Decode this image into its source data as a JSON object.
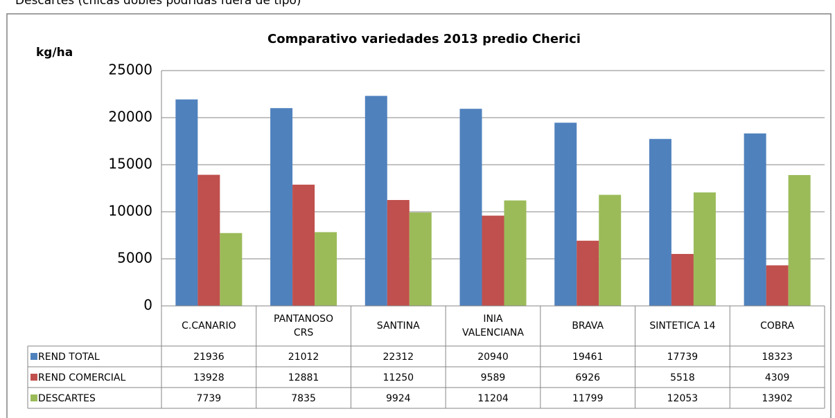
{
  "page_caption": "Descartes (chicas dobles podridas fuera de tipo)",
  "chart_data": {
    "type": "bar",
    "title": "Comparativo variedades 2013 predio Cherici",
    "y_label": "kg/ha",
    "categories": [
      "C.CANARIO",
      "PANTANOSO CRS",
      "SANTINA",
      "INIA VALENCIANA",
      "BRAVA",
      "SINTETICA 14",
      "COBRA"
    ],
    "series": [
      {
        "name": "REND TOTAL",
        "color": "#4f81bd",
        "values": [
          21936,
          21012,
          22312,
          20940,
          19461,
          17739,
          18323
        ]
      },
      {
        "name": "REND COMERCIAL",
        "color": "#c0504d",
        "values": [
          13928,
          12881,
          11250,
          9589,
          6926,
          5518,
          4309
        ]
      },
      {
        "name": "DESCARTES",
        "color": "#9bbb59",
        "values": [
          7739,
          7835,
          9924,
          11204,
          11799,
          12053,
          13902
        ]
      }
    ],
    "ylim": [
      0,
      25000
    ],
    "yticks": [
      0,
      5000,
      10000,
      15000,
      20000,
      25000
    ],
    "grid": true
  }
}
